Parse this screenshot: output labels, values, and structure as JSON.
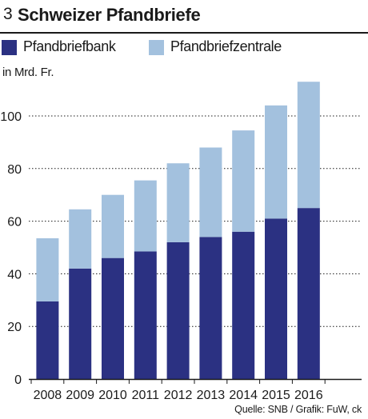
{
  "header": {
    "number": "3",
    "title": "Schweizer Pfandbriefe"
  },
  "legend": {
    "items": [
      {
        "label": "Pfandbriefbank",
        "color": "#2b3182"
      },
      {
        "label": "Pfandbriefzentrale",
        "color": "#a3c1de"
      }
    ]
  },
  "unit_label": "in Mrd. Fr.",
  "source": "Quelle: SNB / Grafik: FuW, ck",
  "chart_data": {
    "type": "bar",
    "stacked": true,
    "categories": [
      "2008",
      "2009",
      "2010",
      "2011",
      "2012",
      "2013",
      "2014",
      "2015",
      "2016"
    ],
    "series": [
      {
        "name": "Pfandbriefbank",
        "values": [
          29.5,
          42,
          46,
          48.5,
          52,
          54,
          56,
          61,
          65
        ],
        "color": "#2b3182"
      },
      {
        "name": "Pfandbriefzentrale",
        "values": [
          24,
          22.5,
          24,
          27,
          30,
          34,
          38.5,
          43,
          48
        ],
        "color": "#a3c1de"
      }
    ],
    "ylabel": "in Mrd. Fr.",
    "ylim": [
      0,
      115
    ],
    "yticks": [
      "0",
      "20",
      "40",
      "60",
      "80",
      "100"
    ],
    "grid": true
  }
}
